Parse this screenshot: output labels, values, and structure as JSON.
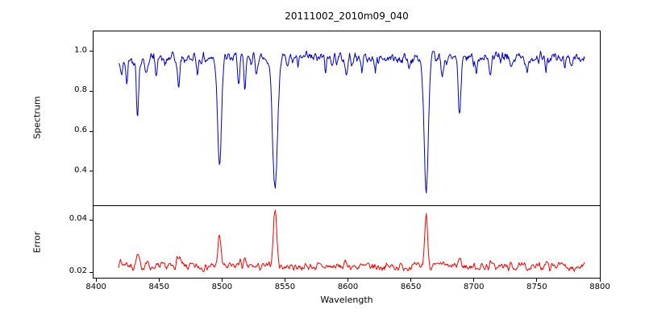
{
  "chart_data": {
    "type": "line",
    "title": "20111002_2010m09_040",
    "xlabel": "Wavelength",
    "xlim": [
      8398,
      8800
    ],
    "xticks": [
      8400,
      8450,
      8500,
      8550,
      8600,
      8650,
      8700,
      8750,
      8800
    ],
    "x_start": 8418,
    "x_end": 8788,
    "n_points": 760,
    "grid": false,
    "legend": "none",
    "panels": [
      {
        "name": "spectrum",
        "ylabel": "Spectrum",
        "color": "#0000cc",
        "ylim": [
          0.23,
          1.1
        ],
        "yticks": [
          0.4,
          0.6,
          0.8,
          1.0
        ],
        "tick_decimals": 1,
        "baseline": 0.965,
        "noise_amplitude": 0.045,
        "noise_seed": 42,
        "absorption_lines": [
          {
            "center": 8420.0,
            "depth": 0.07,
            "sigma": 1.5
          },
          {
            "center": 8424.3,
            "depth": 0.12,
            "sigma": 0.8
          },
          {
            "center": 8433.0,
            "depth": 0.29,
            "sigma": 0.9
          },
          {
            "center": 8439.8,
            "depth": 0.09,
            "sigma": 0.8
          },
          {
            "center": 8448.0,
            "depth": 0.06,
            "sigma": 0.8
          },
          {
            "center": 8455.0,
            "depth": 0.05,
            "sigma": 0.7
          },
          {
            "center": 8465.5,
            "depth": 0.15,
            "sigma": 0.9
          },
          {
            "center": 8480.5,
            "depth": 0.06,
            "sigma": 0.8
          },
          {
            "center": 8498.0,
            "depth": 0.52,
            "sigma": 1.5
          },
          {
            "center": 8513.5,
            "depth": 0.12,
            "sigma": 0.8
          },
          {
            "center": 8518.2,
            "depth": 0.16,
            "sigma": 0.8
          },
          {
            "center": 8527.0,
            "depth": 0.07,
            "sigma": 0.7
          },
          {
            "center": 8542.1,
            "depth": 0.65,
            "sigma": 1.9
          },
          {
            "center": 8560.5,
            "depth": 0.05,
            "sigma": 0.7
          },
          {
            "center": 8582.3,
            "depth": 0.06,
            "sigma": 0.7
          },
          {
            "center": 8598.8,
            "depth": 0.09,
            "sigma": 0.8
          },
          {
            "center": 8611.0,
            "depth": 0.05,
            "sigma": 0.7
          },
          {
            "center": 8621.6,
            "depth": 0.07,
            "sigma": 0.7
          },
          {
            "center": 8648.5,
            "depth": 0.05,
            "sigma": 0.7
          },
          {
            "center": 8662.1,
            "depth": 0.66,
            "sigma": 1.7
          },
          {
            "center": 8674.8,
            "depth": 0.11,
            "sigma": 0.8
          },
          {
            "center": 8688.6,
            "depth": 0.29,
            "sigma": 1.0
          },
          {
            "center": 8702.0,
            "depth": 0.05,
            "sigma": 0.7
          },
          {
            "center": 8713.2,
            "depth": 0.09,
            "sigma": 0.8
          },
          {
            "center": 8730.0,
            "depth": 0.05,
            "sigma": 0.7
          },
          {
            "center": 8742.0,
            "depth": 0.05,
            "sigma": 0.7
          },
          {
            "center": 8757.0,
            "depth": 0.06,
            "sigma": 0.7
          },
          {
            "center": 8772.0,
            "depth": 0.05,
            "sigma": 0.7
          }
        ]
      },
      {
        "name": "error",
        "ylabel": "Error",
        "color": "#ff0000",
        "ylim": [
          0.018,
          0.0452
        ],
        "yticks": [
          0.02,
          0.04
        ],
        "tick_decimals": 2,
        "baseline": 0.0222,
        "noise_amplitude": 0.0022,
        "noise_seed": 7,
        "peaks": [
          {
            "center": 8419.0,
            "height": 0.0018,
            "sigma": 2.0
          },
          {
            "center": 8424.3,
            "height": 0.0015,
            "sigma": 1.2
          },
          {
            "center": 8433.0,
            "height": 0.004,
            "sigma": 1.2
          },
          {
            "center": 8440.0,
            "height": 0.0015,
            "sigma": 1.2
          },
          {
            "center": 8465.5,
            "height": 0.0035,
            "sigma": 1.5
          },
          {
            "center": 8498.0,
            "height": 0.0112,
            "sigma": 1.3
          },
          {
            "center": 8513.8,
            "height": 0.002,
            "sigma": 1.2
          },
          {
            "center": 8518.2,
            "height": 0.0018,
            "sigma": 1.0
          },
          {
            "center": 8542.1,
            "height": 0.0215,
            "sigma": 1.4
          },
          {
            "center": 8598.8,
            "height": 0.0015,
            "sigma": 1.2
          },
          {
            "center": 8662.1,
            "height": 0.0195,
            "sigma": 1.2
          },
          {
            "center": 8674.8,
            "height": 0.0015,
            "sigma": 1.0
          },
          {
            "center": 8688.6,
            "height": 0.003,
            "sigma": 1.2
          },
          {
            "center": 8713.2,
            "height": 0.0015,
            "sigma": 1.0
          },
          {
            "center": 8757.0,
            "height": 0.0018,
            "sigma": 1.0
          },
          {
            "center": 8767.5,
            "height": 0.0022,
            "sigma": 1.0
          }
        ]
      }
    ]
  }
}
